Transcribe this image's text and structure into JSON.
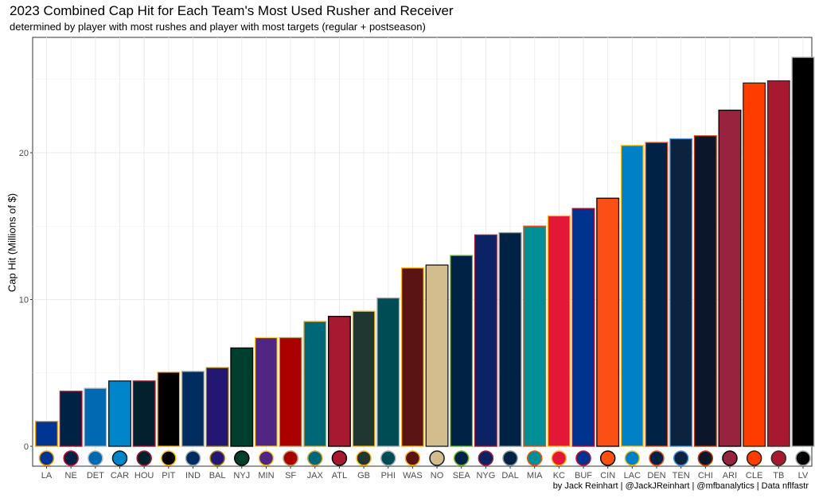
{
  "chart_data": {
    "type": "bar",
    "title": "2023 Combined Cap Hit for Each Team's Most Used Rusher and Receiver",
    "subtitle": "determined by player with most rushes and player with most targets (regular + postseason)",
    "ylabel": "Cap Hit (Millions of $)",
    "xlabel": "",
    "caption": "by Jack Reinhart | @JackJReinhart | @mfbanalytics | Data nflfastr",
    "ylim": [
      -1.2,
      28
    ],
    "yticks": [
      0,
      10,
      20
    ],
    "grid": true,
    "categories": [
      "LA",
      "NE",
      "DET",
      "CAR",
      "HOU",
      "PIT",
      "IND",
      "BAL",
      "NYJ",
      "MIN",
      "SF",
      "JAX",
      "ATL",
      "GB",
      "PHI",
      "WAS",
      "NO",
      "SEA",
      "NYG",
      "DAL",
      "MIA",
      "KC",
      "BUF",
      "CIN",
      "LAC",
      "DEN",
      "TEN",
      "CHI",
      "ARI",
      "CLE",
      "TB",
      "LV"
    ],
    "values": [
      1.7,
      3.75,
      3.95,
      4.45,
      4.45,
      5.05,
      5.1,
      5.35,
      6.7,
      7.4,
      7.4,
      8.5,
      8.85,
      9.2,
      10.1,
      12.15,
      12.35,
      13.0,
      14.4,
      14.55,
      15.0,
      15.7,
      16.2,
      16.9,
      20.5,
      20.7,
      20.95,
      21.15,
      22.9,
      24.75,
      24.9,
      26.5
    ],
    "fills": [
      "#003594",
      "#002244",
      "#0069B1",
      "#0085CA",
      "#03202F",
      "#000000",
      "#002C5F",
      "#241773",
      "#003F2D",
      "#4F2683",
      "#AA0000",
      "#006778",
      "#A71930",
      "#203731",
      "#004C54",
      "#5A1414",
      "#D3BC8D",
      "#002244",
      "#0B2265",
      "#002244",
      "#008E97",
      "#E31837",
      "#00338D",
      "#FB4F14",
      "#0080C6",
      "#002244",
      "#0C2340",
      "#0B162A",
      "#97233F",
      "#FF3C00",
      "#A71930",
      "#000000"
    ],
    "outlines": [
      "#FFA300",
      "#C60C30",
      "#B0B7BC",
      "#101820",
      "#A71930",
      "#FFB612",
      "#A2AAAD",
      "#9E7C0C",
      "#000000",
      "#FFC62F",
      "#B3995D",
      "#D7A22A",
      "#000000",
      "#FFB612",
      "#A5ACAF",
      "#FFB612",
      "#101820",
      "#69BE28",
      "#A71930",
      "#869397",
      "#FC4C02",
      "#FFB81C",
      "#C60C30",
      "#000000",
      "#FFC20E",
      "#FB4F14",
      "#4B92DB",
      "#C83803",
      "#000000",
      "#311D00",
      "#322F2B",
      "#A5ACAF"
    ]
  }
}
